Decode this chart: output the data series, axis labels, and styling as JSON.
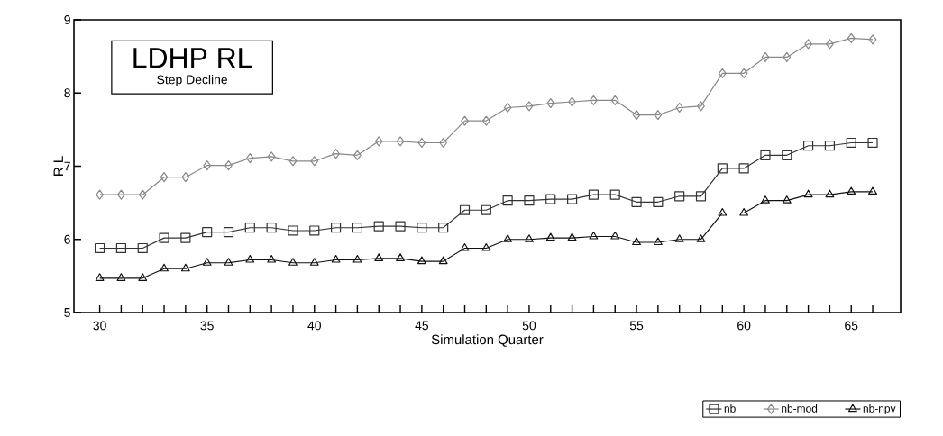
{
  "chart_data": {
    "type": "line",
    "title": "LDHP RL",
    "subtitle": "Step Decline",
    "xlabel": "Simulation Quarter",
    "ylabel": "R L",
    "x": [
      30,
      31,
      32,
      33,
      34,
      35,
      36,
      37,
      38,
      39,
      40,
      41,
      42,
      43,
      44,
      45,
      46,
      47,
      48,
      49,
      50,
      51,
      52,
      53,
      54,
      55,
      56,
      57,
      58,
      59,
      60,
      61,
      62,
      63,
      64,
      65,
      66
    ],
    "series": [
      {
        "name": "nb",
        "color": "#333333",
        "marker": "square",
        "values": [
          5.88,
          5.88,
          5.88,
          6.02,
          6.02,
          6.1,
          6.1,
          6.16,
          6.16,
          6.12,
          6.12,
          6.16,
          6.16,
          6.18,
          6.18,
          6.16,
          6.16,
          6.4,
          6.4,
          6.53,
          6.53,
          6.55,
          6.55,
          6.61,
          6.61,
          6.51,
          6.51,
          6.59,
          6.59,
          6.97,
          6.97,
          7.15,
          7.15,
          7.28,
          7.28,
          7.32,
          7.32
        ]
      },
      {
        "name": "nb-mod",
        "color": "#888888",
        "marker": "diamond",
        "values": [
          6.61,
          6.61,
          6.61,
          6.85,
          6.85,
          7.01,
          7.01,
          7.11,
          7.13,
          7.07,
          7.07,
          7.17,
          7.15,
          7.34,
          7.34,
          7.32,
          7.32,
          7.62,
          7.62,
          7.8,
          7.82,
          7.86,
          7.88,
          7.9,
          7.9,
          7.7,
          7.7,
          7.8,
          7.82,
          8.27,
          8.27,
          8.49,
          8.49,
          8.67,
          8.67,
          8.75,
          8.73
        ]
      },
      {
        "name": "nb-npv",
        "color": "#111111",
        "marker": "triangle",
        "values": [
          5.47,
          5.47,
          5.47,
          5.6,
          5.6,
          5.68,
          5.68,
          5.72,
          5.72,
          5.68,
          5.68,
          5.72,
          5.72,
          5.74,
          5.74,
          5.7,
          5.7,
          5.88,
          5.88,
          6.0,
          6.0,
          6.02,
          6.02,
          6.04,
          6.04,
          5.96,
          5.96,
          6.0,
          6.0,
          6.36,
          6.36,
          6.53,
          6.53,
          6.61,
          6.61,
          6.65,
          6.65
        ]
      }
    ],
    "xlim": [
      28.8,
      67.3
    ],
    "ylim": [
      5,
      9
    ],
    "xticks": [
      30,
      {
        "value": 31,
        "label": null
      },
      {
        "value": 32,
        "label": null
      },
      {
        "value": 33,
        "label": null
      },
      {
        "value": 34,
        "label": null
      },
      35,
      {
        "value": 36,
        "label": null
      },
      {
        "value": 37,
        "label": null
      },
      {
        "value": 38,
        "label": null
      },
      {
        "value": 39,
        "label": null
      },
      40,
      {
        "value": 41,
        "label": null
      },
      {
        "value": 42,
        "label": null
      },
      {
        "value": 43,
        "label": null
      },
      {
        "value": 44,
        "label": null
      },
      45,
      {
        "value": 46,
        "label": null
      },
      {
        "value": 47,
        "label": null
      },
      {
        "value": 48,
        "label": null
      },
      {
        "value": 49,
        "label": null
      },
      50,
      {
        "value": 51,
        "label": null
      },
      {
        "value": 52,
        "label": null
      },
      {
        "value": 53,
        "label": null
      },
      {
        "value": 54,
        "label": null
      },
      55,
      {
        "value": 56,
        "label": null
      },
      {
        "value": 57,
        "label": null
      },
      {
        "value": 58,
        "label": null
      },
      {
        "value": 59,
        "label": null
      },
      60,
      {
        "value": 61,
        "label": null
      },
      {
        "value": 62,
        "label": null
      },
      {
        "value": 63,
        "label": null
      },
      {
        "value": 64,
        "label": null
      },
      65,
      {
        "value": 66,
        "label": null
      }
    ],
    "yticks": [
      5,
      6,
      7,
      8,
      9
    ],
    "grid": false,
    "legend": "bottom",
    "line_style": "solid"
  }
}
